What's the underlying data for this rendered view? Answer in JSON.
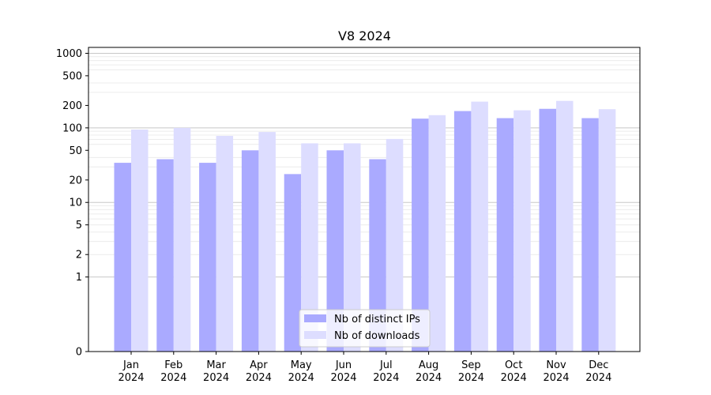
{
  "chart_data": {
    "type": "bar",
    "title": "V8 2024",
    "xlabel": "",
    "ylabel": "",
    "y_scale": "symlog",
    "ylim": [
      0,
      1200
    ],
    "y_ticks": [
      0,
      1,
      2,
      5,
      10,
      20,
      50,
      100,
      200,
      500,
      1000
    ],
    "grid": "horizontal (major and minor)",
    "legend_position": "lower center",
    "categories": [
      [
        "Jan",
        "2024"
      ],
      [
        "Feb",
        "2024"
      ],
      [
        "Mar",
        "2024"
      ],
      [
        "Apr",
        "2024"
      ],
      [
        "May",
        "2024"
      ],
      [
        "Jun",
        "2024"
      ],
      [
        "Jul",
        "2024"
      ],
      [
        "Aug",
        "2024"
      ],
      [
        "Sep",
        "2024"
      ],
      [
        "Oct",
        "2024"
      ],
      [
        "Nov",
        "2024"
      ],
      [
        "Dec",
        "2024"
      ]
    ],
    "series": [
      {
        "name": "Nb of distinct IPs",
        "color": "#aaaaff",
        "values": [
          34,
          38,
          34,
          50,
          24,
          50,
          38,
          133,
          168,
          135,
          180,
          135
        ]
      },
      {
        "name": "Nb of downloads",
        "color": "#ddddff",
        "values": [
          95,
          100,
          78,
          88,
          62,
          62,
          71,
          148,
          225,
          172,
          230,
          178
        ]
      }
    ]
  }
}
